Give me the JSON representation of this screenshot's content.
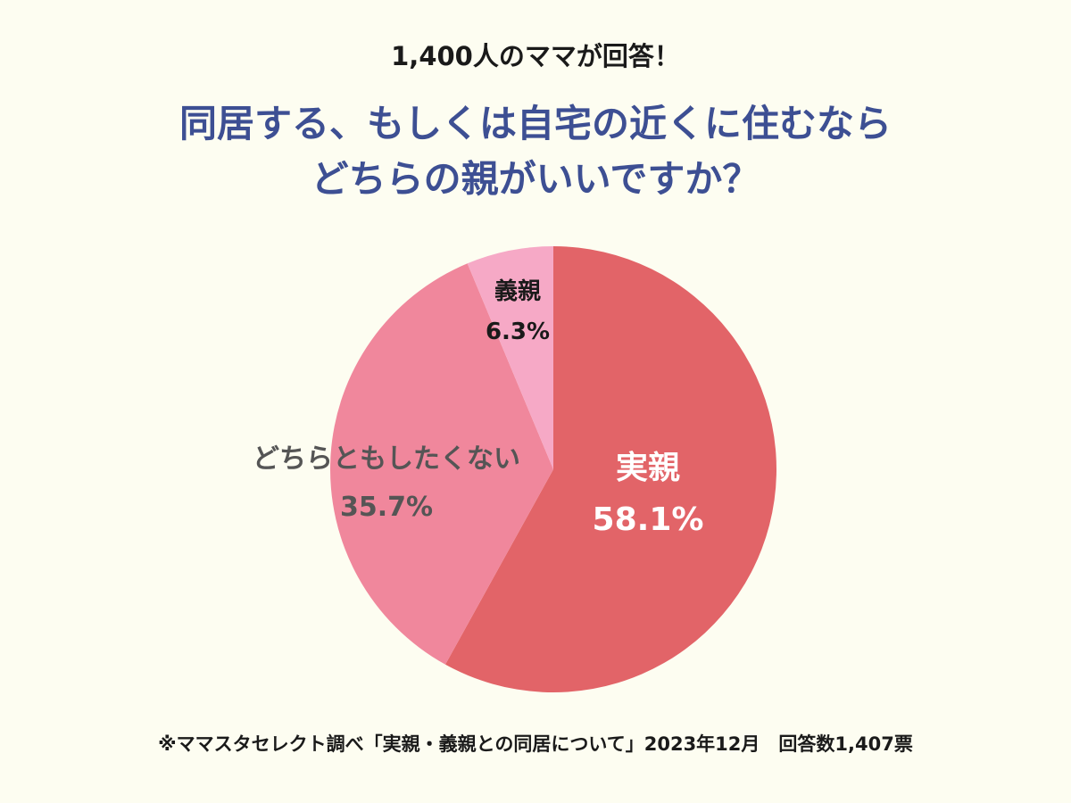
{
  "header": {
    "supertitle": "1,400人のママが回答！",
    "title_line1": "同居する、もしくは自宅の近くに住むなら",
    "title_line2": "どちらの親がいいですか？"
  },
  "chart_data": {
    "type": "pie",
    "title": "同居する、もしくは自宅の近くに住むなら どちらの親がいいですか？",
    "slices": [
      {
        "label": "実親",
        "value": 58.1,
        "value_text": "58.1%",
        "color": "#e26468",
        "text_color": "#ffffff"
      },
      {
        "label": "どちらともしたくない",
        "value": 35.7,
        "value_text": "35.7%",
        "color": "#f0879c",
        "text_color": "#555555"
      },
      {
        "label": "義親",
        "value": 6.3,
        "value_text": "6.3%",
        "color": "#f6a9c6",
        "text_color": "#1a1a1a"
      }
    ],
    "start": "12 o'clock",
    "direction": "clockwise"
  },
  "footer": {
    "note": "※ママスタセレクト調べ「実親・義親との同居について」2023年12月　回答数1,407票"
  }
}
